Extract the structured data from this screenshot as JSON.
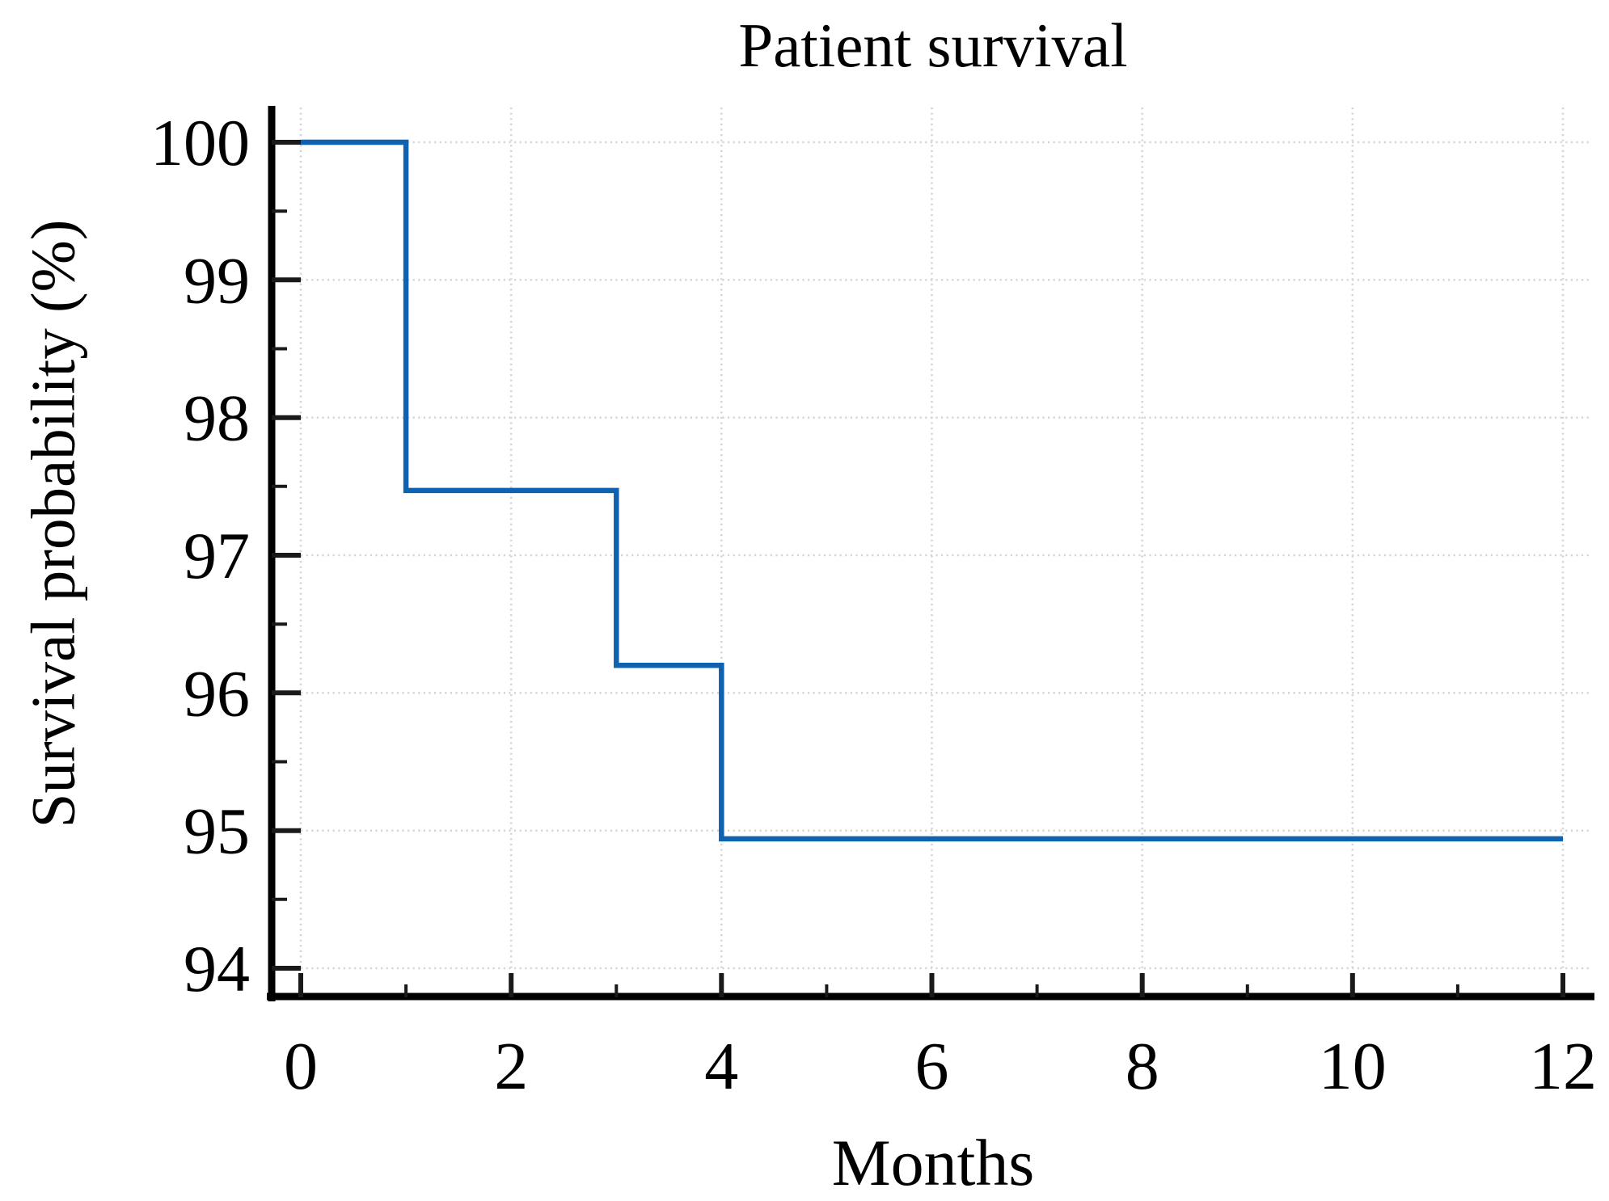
{
  "title": "Patient survival",
  "axes": {
    "x_label": "Months",
    "y_label": "Survival probability (%)"
  },
  "colors": {
    "curve": "#0E62AF",
    "axis": "#000000",
    "grid": "#D6D6D6",
    "background": "#FFFFFF",
    "text": "#000000"
  },
  "chart_data": {
    "type": "line",
    "subtype": "kaplan-meier-step",
    "title": "Patient survival",
    "xlabel": "Months",
    "ylabel": "Survival probability (%)",
    "xlim": [
      0,
      12
    ],
    "ylim": [
      94,
      100
    ],
    "grid": {
      "style": "dotted",
      "vertical_at": [
        0,
        2,
        4,
        6,
        8,
        10,
        12
      ],
      "horizontal_at": [
        94,
        95,
        96,
        97,
        98,
        99,
        100
      ]
    },
    "x_major_ticks": [
      {
        "value": 0,
        "label": "0"
      },
      {
        "value": 2,
        "label": "2"
      },
      {
        "value": 4,
        "label": "4"
      },
      {
        "value": 6,
        "label": "6"
      },
      {
        "value": 8,
        "label": "8"
      },
      {
        "value": 10,
        "label": "10"
      },
      {
        "value": 12,
        "label": "12"
      }
    ],
    "x_minor_ticks": [
      1,
      3,
      5,
      7,
      9,
      11
    ],
    "y_major_ticks": [
      {
        "value": 100,
        "label": "100"
      },
      {
        "value": 99,
        "label": "99"
      },
      {
        "value": 98,
        "label": "98"
      },
      {
        "value": 97,
        "label": "97"
      },
      {
        "value": 96,
        "label": "96"
      },
      {
        "value": 95,
        "label": "95"
      },
      {
        "value": 94,
        "label": "94"
      }
    ],
    "y_minor_ticks": [
      94.5,
      95.5,
      96.5,
      97.5,
      98.5,
      99.5
    ],
    "series": [
      {
        "name": "Patient survival",
        "color": "#0E62AF",
        "step_points": [
          [
            0,
            100
          ],
          [
            1,
            100
          ],
          [
            1,
            97.47
          ],
          [
            3,
            97.47
          ],
          [
            3,
            96.2
          ],
          [
            4,
            96.2
          ],
          [
            4,
            94.94
          ],
          [
            12,
            94.94
          ]
        ]
      }
    ],
    "legend": null
  }
}
